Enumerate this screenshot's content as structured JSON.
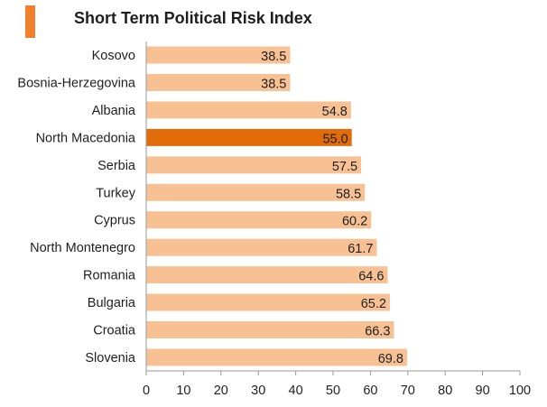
{
  "colors": {
    "accent": "#f07f2e",
    "bar": "#f8c194",
    "highlight": "#e26b0a",
    "text": "#1f1f1f",
    "axis": "#9a9a9a"
  },
  "chart_data": {
    "type": "bar",
    "orientation": "horizontal",
    "title": "Short Term Political Risk Index",
    "categories": [
      "Kosovo",
      "Bosnia-Herzegovina",
      "Albania",
      "North Macedonia",
      "Serbia",
      "Turkey",
      "Cyprus",
      "North Montenegro",
      "Romania",
      "Bulgaria",
      "Croatia",
      "Slovenia"
    ],
    "values": [
      38.5,
      38.5,
      54.8,
      55.0,
      57.5,
      58.5,
      60.2,
      61.7,
      64.6,
      65.2,
      66.3,
      69.8
    ],
    "value_labels": [
      "38.5",
      "38.5",
      "54.8",
      "55.0",
      "57.5",
      "58.5",
      "60.2",
      "61.7",
      "64.6",
      "65.2",
      "66.3",
      "69.8"
    ],
    "highlighted": "North Macedonia",
    "xlim": [
      0,
      100
    ],
    "xticks": [
      "0",
      "10",
      "20",
      "30",
      "40",
      "50",
      "60",
      "70",
      "80",
      "90",
      "100"
    ],
    "xlabel": "",
    "ylabel": "",
    "grid": false,
    "legend": "none"
  }
}
